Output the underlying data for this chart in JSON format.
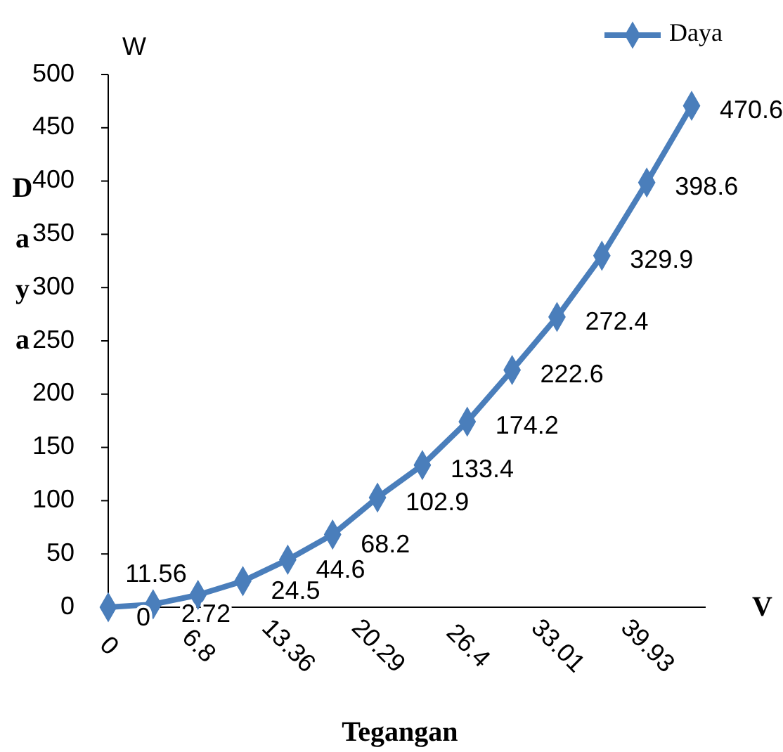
{
  "chart_data": {
    "type": "line",
    "xlabel": "Tegangan",
    "ylabel": "Daya",
    "annotations": [
      "W",
      "V"
    ],
    "categories": [
      "0",
      null,
      "6.8",
      null,
      "13.36",
      null,
      "20.29",
      null,
      "26.4",
      null,
      "33.01",
      null,
      "39.93",
      null
    ],
    "series": [
      {
        "name": "Daya",
        "color": "#4a7ebb",
        "values": [
          0,
          2.72,
          11.56,
          24.5,
          44.6,
          68.2,
          102.9,
          133.4,
          174.2,
          222.6,
          272.4,
          329.9,
          398.6,
          470.6
        ]
      }
    ],
    "ylim": [
      0,
      500
    ],
    "yticks": [
      0,
      50,
      100,
      150,
      200,
      250,
      300,
      350,
      400,
      450,
      500
    ],
    "data_labels": true,
    "legend": "top right",
    "marker": "diamond",
    "line_style": "solid",
    "grid": false
  }
}
